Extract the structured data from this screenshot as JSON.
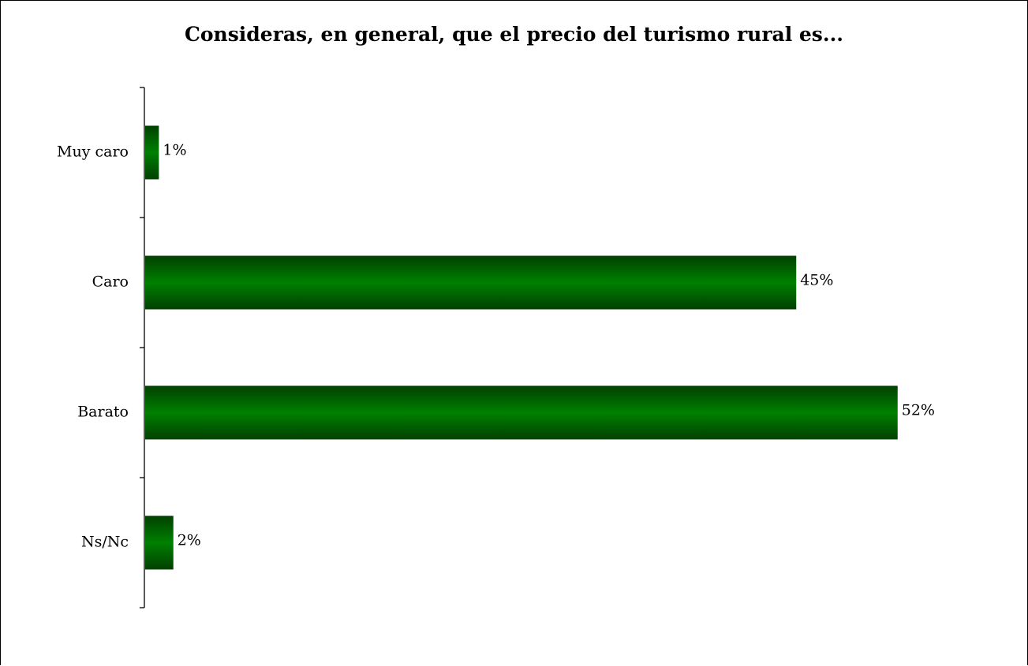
{
  "chart_data": {
    "type": "bar",
    "orientation": "horizontal",
    "title": "Consideras, en general, que el precio del turismo rural es...",
    "categories": [
      "Muy caro",
      "Caro",
      "Barato",
      "Ns/Nc"
    ],
    "values": [
      1,
      45,
      52,
      2
    ],
    "value_labels": [
      "1%",
      "45%",
      "52%",
      "2%"
    ],
    "unit": "%",
    "xlim": [
      0,
      61
    ],
    "grid": false,
    "legend": "none",
    "colors": {
      "bar_edge": "#004000",
      "bar_mid": "#008000",
      "axis": "#000000"
    }
  }
}
